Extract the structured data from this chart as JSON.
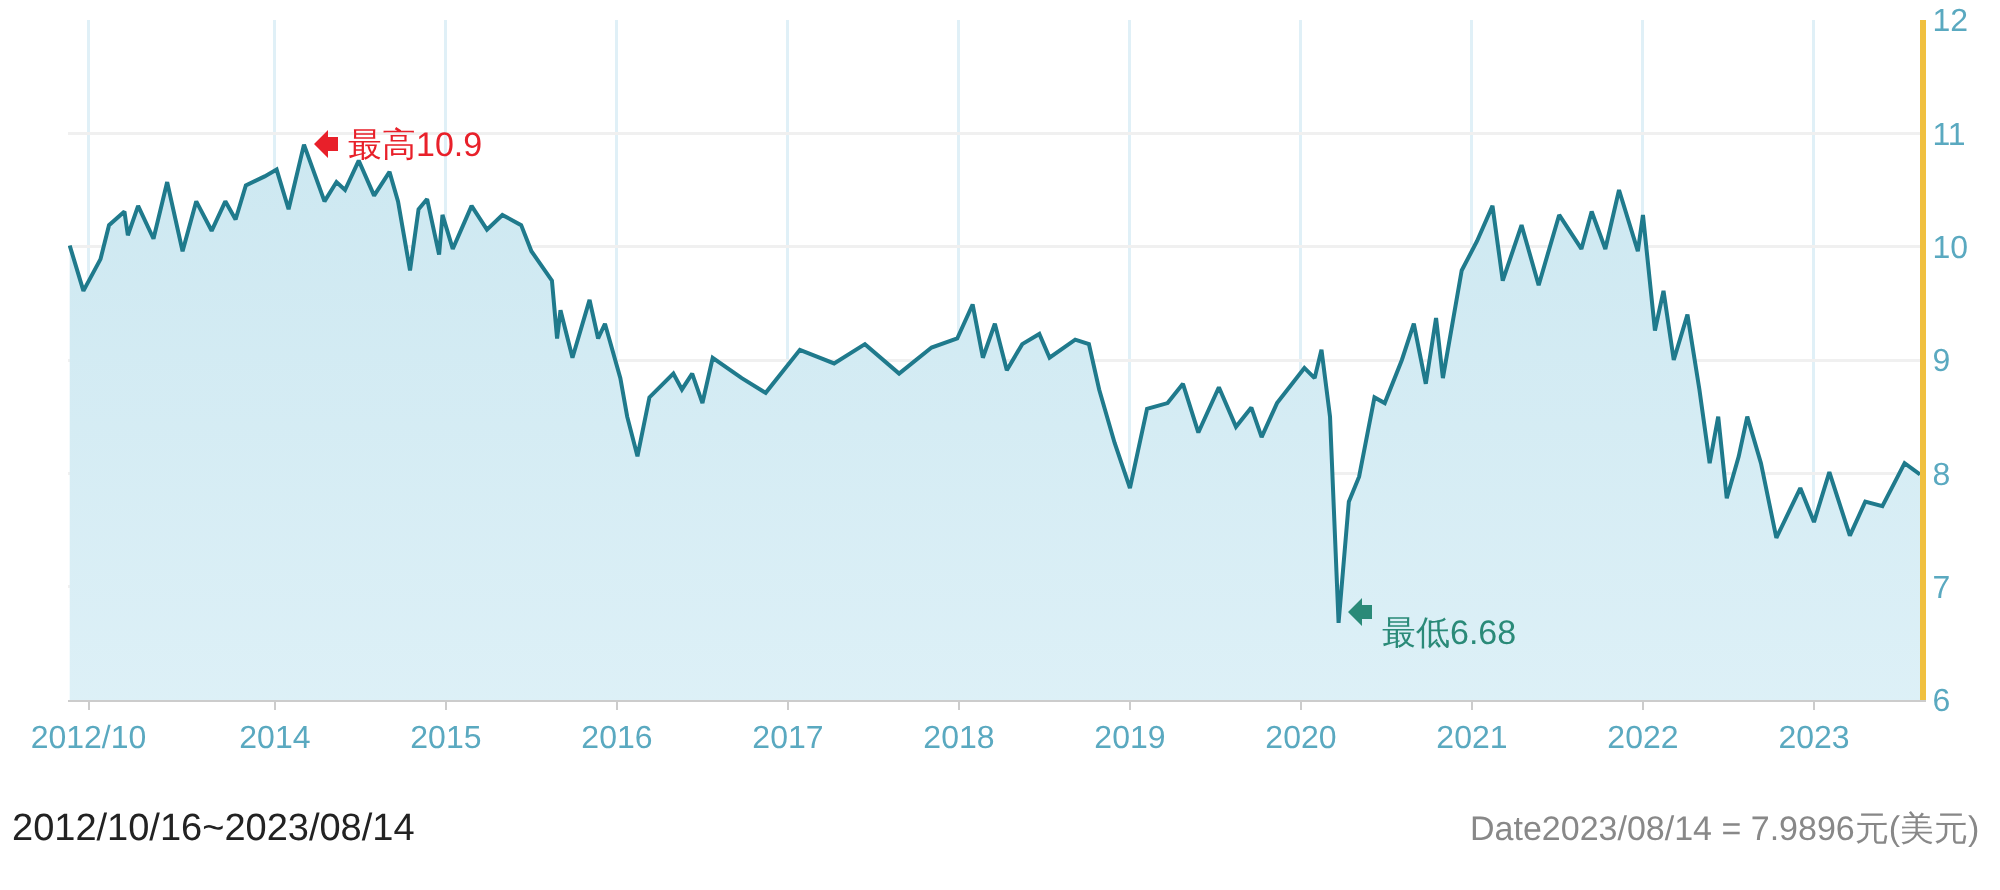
{
  "chart_data": {
    "type": "area",
    "x": [
      2012.8,
      2012.88,
      2012.98,
      2013.03,
      2013.12,
      2013.14,
      2013.2,
      2013.29,
      2013.37,
      2013.46,
      2013.54,
      2013.63,
      2013.71,
      2013.77,
      2013.83,
      2013.94,
      2014.01,
      2014.08,
      2014.17,
      2014.29,
      2014.36,
      2014.41,
      2014.49,
      2014.58,
      2014.67,
      2014.72,
      2014.79,
      2014.84,
      2014.89,
      2014.96,
      2014.98,
      2015.04,
      2015.15,
      2015.24,
      2015.33,
      2015.44,
      2015.5,
      2015.62,
      2015.65,
      2015.67,
      2015.74,
      2015.84,
      2015.89,
      2015.93,
      2016.02,
      2016.06,
      2016.12,
      2016.19,
      2016.33,
      2016.38,
      2016.44,
      2016.5,
      2016.56,
      2016.73,
      2016.87,
      2017.07,
      2017.27,
      2017.45,
      2017.65,
      2017.84,
      2017.99,
      2018.08,
      2018.14,
      2018.21,
      2018.28,
      2018.37,
      2018.47,
      2018.53,
      2018.68,
      2018.76,
      2018.82,
      2018.91,
      2019.0,
      2019.1,
      2019.22,
      2019.31,
      2019.4,
      2019.52,
      2019.62,
      2019.71,
      2019.77,
      2019.86,
      2020.02,
      2020.08,
      2020.12,
      2020.17,
      2020.22,
      2020.28,
      2020.34,
      2020.43,
      2020.49,
      2020.59,
      2020.66,
      2020.73,
      2020.79,
      2020.83,
      2020.94,
      2021.03,
      2021.12,
      2021.18,
      2021.29,
      2021.39,
      2021.51,
      2021.64,
      2021.7,
      2021.78,
      2021.86,
      2021.97,
      2022.0,
      2022.07,
      2022.12,
      2022.18,
      2022.26,
      2022.33,
      2022.39,
      2022.44,
      2022.49,
      2022.56,
      2022.61,
      2022.69,
      2022.78,
      2022.92,
      2023.0,
      2023.09,
      2023.21,
      2023.3,
      2023.4,
      2023.53,
      2023.62
    ],
    "series": [
      {
        "color": "#1f7a8c",
        "values": [
          10.01,
          9.61,
          9.89,
          10.19,
          10.31,
          10.1,
          10.36,
          10.07,
          10.57,
          9.96,
          10.4,
          10.14,
          10.4,
          10.24,
          10.54,
          10.62,
          10.68,
          10.33,
          10.9,
          10.4,
          10.57,
          10.5,
          10.76,
          10.45,
          10.66,
          10.4,
          9.79,
          10.33,
          10.42,
          9.93,
          10.28,
          9.98,
          10.36,
          10.15,
          10.28,
          10.19,
          9.96,
          9.7,
          9.19,
          9.44,
          9.02,
          9.53,
          9.19,
          9.32,
          8.84,
          8.5,
          8.15,
          8.67,
          8.88,
          8.74,
          8.88,
          8.62,
          9.02,
          8.84,
          8.71,
          9.09,
          8.97,
          9.14,
          8.88,
          9.11,
          9.19,
          9.49,
          9.02,
          9.32,
          8.91,
          9.14,
          9.23,
          9.02,
          9.18,
          9.14,
          8.74,
          8.27,
          7.87,
          8.57,
          8.62,
          8.79,
          8.36,
          8.76,
          8.41,
          8.58,
          8.32,
          8.62,
          8.93,
          8.84,
          9.09,
          8.5,
          6.68,
          7.75,
          7.97,
          8.67,
          8.62,
          9.0,
          9.32,
          8.79,
          9.37,
          8.84,
          9.79,
          10.05,
          10.36,
          9.7,
          10.19,
          9.66,
          10.28,
          9.98,
          10.31,
          9.98,
          10.5,
          9.96,
          10.28,
          9.26,
          9.61,
          9.0,
          9.4,
          8.74,
          8.09,
          8.5,
          7.78,
          8.15,
          8.5,
          8.09,
          7.43,
          7.87,
          7.57,
          8.01,
          7.45,
          7.75,
          7.71,
          8.09,
          7.99
        ]
      }
    ],
    "xlim": [
      2012.79,
      2023.62
    ],
    "xticks": [
      {
        "value": 2012.91,
        "label": "2012/10"
      },
      2014,
      2015,
      2016,
      2017,
      2018,
      2019,
      2020,
      2021,
      2022,
      2023
    ],
    "ylim": [
      6,
      12
    ],
    "yticks": [
      6,
      7,
      8,
      9,
      10,
      11,
      12
    ],
    "grid": true,
    "annotations": [
      {
        "text": "最高10.9",
        "x": 2014.17,
        "y": 10.9
      },
      {
        "text": "最低6.68",
        "x": 2020.22,
        "y": 6.68
      },
      "2012/10/16~2023/08/14",
      "Date2023/08/14 = 7.9896元(美元)"
    ]
  }
}
